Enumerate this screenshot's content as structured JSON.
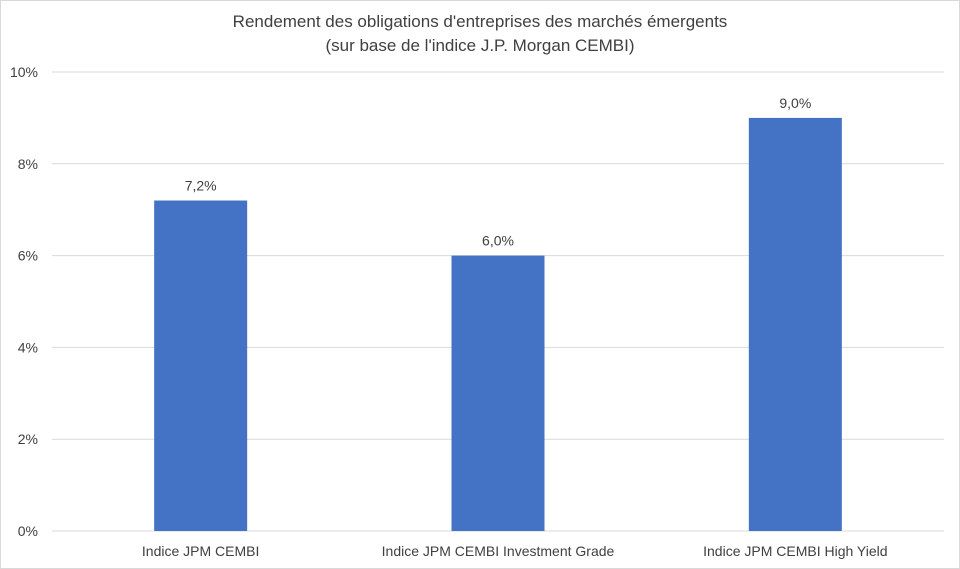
{
  "chart_data": {
    "type": "bar",
    "title": "Rendement des obligations d'entreprises des marchés émergents",
    "subtitle": "(sur base de l'indice J.P. Morgan CEMBI)",
    "categories": [
      "Indice JPM CEMBI",
      "Indice JPM CEMBI Investment Grade",
      "Indice JPM CEMBI High Yield"
    ],
    "values": [
      7.2,
      6.0,
      9.0
    ],
    "data_labels": [
      "7,2%",
      "6,0%",
      "9,0%"
    ],
    "ylim": [
      0,
      10
    ],
    "yticks": [
      0,
      2,
      4,
      6,
      8,
      10
    ],
    "ytick_labels": [
      "0%",
      "2%",
      "4%",
      "6%",
      "8%",
      "10%"
    ],
    "xlabel": "",
    "ylabel": "",
    "grid": true,
    "legend": "none",
    "bar_color": "#4472c4",
    "grid_color": "#d9d9d9"
  }
}
